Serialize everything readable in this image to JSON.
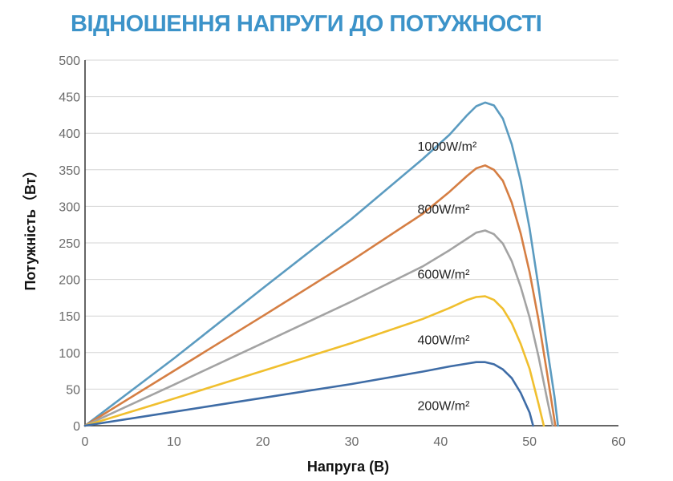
{
  "chart_data": {
    "type": "line",
    "title": "ВІДНОШЕННЯ НАПРУГИ ДО ПОТУЖНОСТІ",
    "xlabel": "Напруга (В)",
    "ylabel": "Потужність（Вт）",
    "xlim": [
      0,
      60
    ],
    "ylim": [
      0,
      500
    ],
    "xticks": [
      0,
      10,
      20,
      30,
      40,
      50,
      60
    ],
    "yticks": [
      0,
      50,
      100,
      150,
      200,
      250,
      300,
      350,
      400,
      450,
      500
    ],
    "grid": "horizontal",
    "series": [
      {
        "name": "1000W/m²",
        "color": "#5b9bc0",
        "points": [
          [
            0,
            0
          ],
          [
            10,
            92
          ],
          [
            20,
            188
          ],
          [
            30,
            283
          ],
          [
            38,
            365
          ],
          [
            41,
            398
          ],
          [
            43,
            425
          ],
          [
            44,
            437
          ],
          [
            45,
            442
          ],
          [
            46,
            438
          ],
          [
            47,
            420
          ],
          [
            48,
            385
          ],
          [
            49,
            335
          ],
          [
            50,
            270
          ],
          [
            51,
            190
          ],
          [
            52,
            105
          ],
          [
            52.8,
            40
          ],
          [
            53.2,
            0
          ]
        ]
      },
      {
        "name": "800W/m²",
        "color": "#d57e43",
        "points": [
          [
            0,
            0
          ],
          [
            10,
            75
          ],
          [
            20,
            150
          ],
          [
            30,
            226
          ],
          [
            38,
            290
          ],
          [
            41,
            320
          ],
          [
            43,
            342
          ],
          [
            44,
            352
          ],
          [
            45,
            356
          ],
          [
            46,
            350
          ],
          [
            47,
            335
          ],
          [
            48,
            305
          ],
          [
            49,
            263
          ],
          [
            50,
            210
          ],
          [
            51,
            145
          ],
          [
            52,
            70
          ],
          [
            52.9,
            0
          ]
        ]
      },
      {
        "name": "600W/m²",
        "color": "#a3a3a3",
        "points": [
          [
            0,
            0
          ],
          [
            10,
            56
          ],
          [
            20,
            113
          ],
          [
            30,
            170
          ],
          [
            38,
            218
          ],
          [
            41,
            240
          ],
          [
            43,
            256
          ],
          [
            44,
            264
          ],
          [
            45,
            267
          ],
          [
            46,
            262
          ],
          [
            47,
            249
          ],
          [
            48,
            225
          ],
          [
            49,
            190
          ],
          [
            50,
            148
          ],
          [
            51,
            95
          ],
          [
            52,
            35
          ],
          [
            52.6,
            0
          ]
        ]
      },
      {
        "name": "400W/m²",
        "color": "#f0bf2e",
        "points": [
          [
            0,
            0
          ],
          [
            10,
            37
          ],
          [
            20,
            75
          ],
          [
            30,
            113
          ],
          [
            38,
            146
          ],
          [
            41,
            161
          ],
          [
            43,
            172
          ],
          [
            44,
            176
          ],
          [
            45,
            177
          ],
          [
            46,
            172
          ],
          [
            47,
            160
          ],
          [
            48,
            140
          ],
          [
            49,
            112
          ],
          [
            50,
            78
          ],
          [
            51,
            30
          ],
          [
            51.6,
            0
          ]
        ]
      },
      {
        "name": "200W/m²",
        "color": "#3e6ca6",
        "points": [
          [
            0,
            0
          ],
          [
            10,
            19
          ],
          [
            20,
            38
          ],
          [
            30,
            57
          ],
          [
            38,
            74
          ],
          [
            41,
            81
          ],
          [
            43,
            85
          ],
          [
            44,
            87
          ],
          [
            45,
            87
          ],
          [
            46,
            84
          ],
          [
            47,
            77
          ],
          [
            48,
            65
          ],
          [
            49,
            45
          ],
          [
            50,
            18
          ],
          [
            50.4,
            0
          ]
        ]
      }
    ],
    "colors": {
      "title": "#3c93c9",
      "axis": "#333333",
      "grid": "#d4d4d4"
    }
  }
}
